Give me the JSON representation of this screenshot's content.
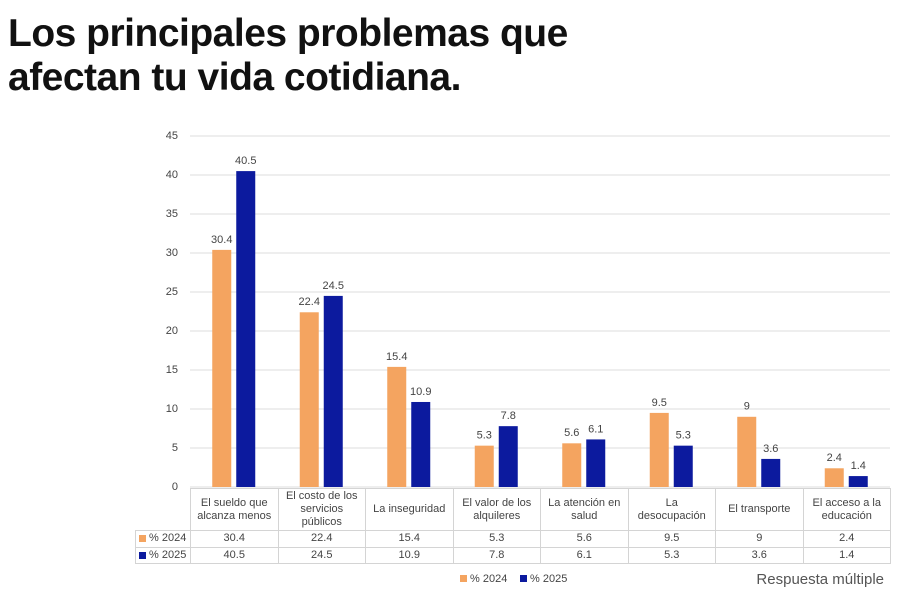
{
  "chart_data": {
    "type": "bar",
    "title": [
      "Los principales problemas que",
      "afectan tu vida cotidiana."
    ],
    "categories": [
      "El sueldo que alcanza menos",
      "El costo de los servicios públicos",
      "La inseguridad",
      "El valor de los alquileres",
      "La atención en salud",
      "La desocupación",
      "El transporte",
      "El acceso a la educación"
    ],
    "series": [
      {
        "name": "% 2024",
        "color": "#f4a460",
        "values": [
          30.4,
          22.4,
          15.4,
          5.3,
          5.6,
          9.5,
          9,
          2.4
        ]
      },
      {
        "name": "% 2025",
        "color": "#0c1a9e",
        "values": [
          40.5,
          24.5,
          10.9,
          7.8,
          6.1,
          5.3,
          3.6,
          1.4
        ]
      }
    ],
    "ylim": [
      0,
      45
    ],
    "yticks": [
      0,
      5,
      10,
      15,
      20,
      25,
      30,
      35,
      40,
      45
    ],
    "grid": true,
    "note": "Respuesta múltiple"
  }
}
